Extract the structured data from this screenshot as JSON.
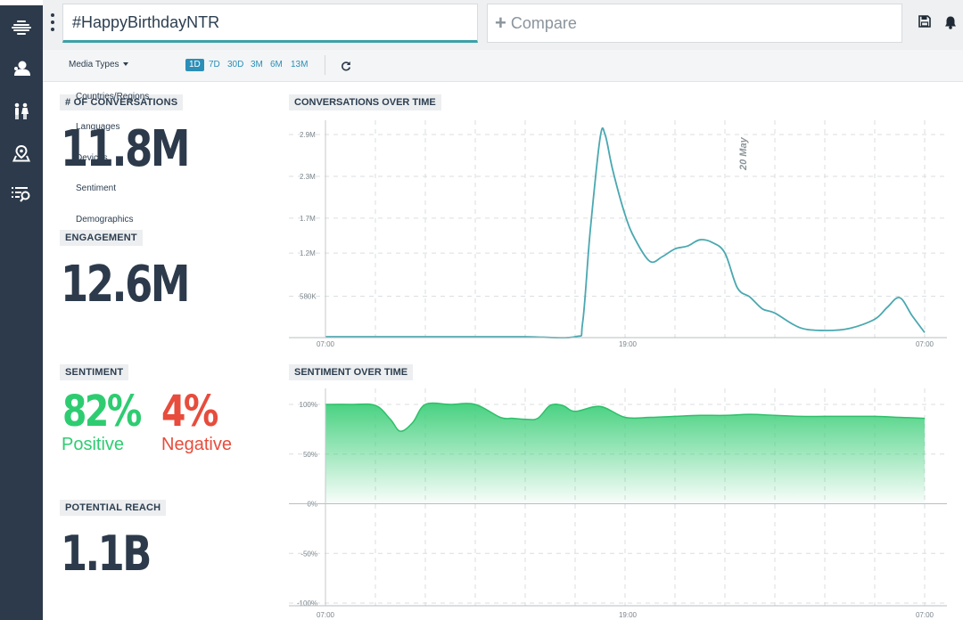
{
  "sidebar": {
    "items": [
      {
        "icon": "dashboard-icon"
      },
      {
        "icon": "user-icon"
      },
      {
        "icon": "people-icon"
      },
      {
        "icon": "map-pin-icon"
      },
      {
        "icon": "list-search-icon"
      }
    ]
  },
  "header": {
    "search_value": "#HappyBirthdayNTR",
    "compare_label": "Compare",
    "icons": [
      "save-icon",
      "bell-icon"
    ]
  },
  "filters": {
    "media_types_label": "Media Types",
    "ranges": [
      "1D",
      "7D",
      "30D",
      "3M",
      "6M",
      "13M"
    ],
    "active_range": "1D",
    "dropdown_items": [
      "Countries/Regions",
      "Languages",
      "Devices",
      "Sentiment",
      "Demographics"
    ]
  },
  "metrics": {
    "conversations": {
      "label": "# OF CONVERSATIONS",
      "value": "11.8M"
    },
    "engagement": {
      "label": "ENGAGEMENT",
      "value": "12.6M"
    },
    "sentiment": {
      "label": "SENTIMENT",
      "positive_value": "82%",
      "positive_label": "Positive",
      "negative_value": "4%",
      "negative_label": "Negative"
    },
    "reach": {
      "label": "POTENTIAL REACH",
      "value": "1.1B"
    }
  },
  "colors": {
    "positive": "#2ecc71",
    "negative": "#e74c3c",
    "line": "#4aa8b0",
    "sidebar": "#2c3a4b",
    "accent": "#2b8fb8"
  },
  "chart_data": [
    {
      "type": "line",
      "title": "CONVERSATIONS OVER TIME",
      "ylim": [
        0,
        2900000
      ],
      "y_ticks": [
        580000,
        1200000,
        1700000,
        2300000,
        2900000
      ],
      "y_tick_labels": [
        "580K",
        "1.2M",
        "1.7M",
        "2.3M",
        "2.9M"
      ],
      "x_tick_labels": [
        "07:00",
        "19:00",
        "07:00"
      ],
      "annotation": "20 May",
      "x": [
        0,
        2,
        4,
        6,
        8,
        10,
        10.3,
        10.6,
        11,
        11.2,
        11.5,
        12,
        12.4,
        13,
        13.5,
        14,
        14.5,
        15,
        15.5,
        16,
        16.5,
        17,
        17.5,
        18,
        19,
        20,
        21,
        22,
        22.5,
        23,
        23.5,
        24
      ],
      "series": [
        {
          "values": [
            0,
            0,
            0,
            0,
            0,
            0,
            200000,
            1500000,
            2850000,
            2900000,
            2400000,
            1750000,
            1400000,
            1080000,
            1150000,
            1260000,
            1300000,
            1390000,
            1350000,
            1200000,
            700000,
            570000,
            400000,
            340000,
            130000,
            90000,
            120000,
            250000,
            420000,
            560000,
            300000,
            60000
          ]
        }
      ]
    },
    {
      "type": "area",
      "title": "SENTIMENT OVER TIME",
      "ylim": [
        -100,
        100
      ],
      "y_ticks": [
        -100,
        -50,
        0,
        50,
        100
      ],
      "y_tick_labels": [
        "-100%",
        "-50%",
        "0%",
        "50%",
        "100%"
      ],
      "x_tick_labels": [
        "07:00",
        "19:00",
        "07:00"
      ],
      "x": [
        0,
        1,
        2,
        2.6,
        3,
        3.5,
        4,
        5,
        6,
        7,
        7.5,
        8,
        8.5,
        9,
        9.5,
        10,
        11,
        12,
        13,
        14,
        15,
        16,
        17,
        18,
        19,
        20,
        21,
        22,
        23,
        24
      ],
      "series": [
        {
          "values": [
            100,
            100,
            99,
            85,
            73,
            82,
            100,
            100,
            100,
            87,
            86,
            85,
            86,
            99,
            99,
            93,
            98,
            87,
            87,
            88,
            89,
            89,
            90,
            89,
            88,
            88,
            88,
            88,
            87,
            86
          ]
        }
      ]
    }
  ]
}
